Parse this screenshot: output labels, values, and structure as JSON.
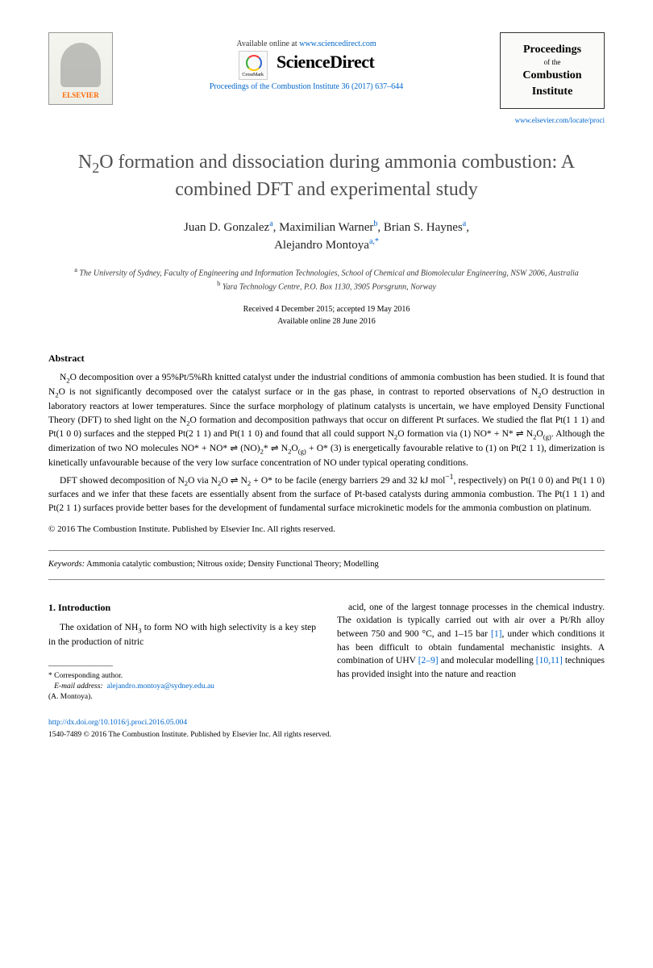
{
  "header": {
    "publisher_name": "ELSEVIER",
    "available_text": "Available online at ",
    "available_url": "www.sciencedirect.com",
    "sciencedirect": "ScienceDirect",
    "crossmark": "CrossMark",
    "citation": "Proceedings of the Combustion Institute 36 (2017) 637–644",
    "journal_box_1": "Proceedings",
    "journal_box_2": "of the",
    "journal_box_3": "Combustion",
    "journal_box_4": "Institute",
    "locate_url": "www.elsevier.com/locate/proci"
  },
  "title": "N₂O formation and dissociation during ammonia combustion: A combined DFT and experimental study",
  "authors_html": "Juan D. Gonzalez",
  "authors": {
    "a1_name": "Juan D. Gonzalez",
    "a1_aff": "a",
    "a2_name": "Maximilian Warner",
    "a2_aff": "b",
    "a3_name": "Brian S. Haynes",
    "a3_aff": "a",
    "a4_name": "Alejandro Montoya",
    "a4_aff": "a,*"
  },
  "affiliations": {
    "a": "The University of Sydney, Faculty of Engineering and Information Technologies, School of Chemical and Biomolecular Engineering, NSW 2006, Australia",
    "b": "Yara Technology Centre, P.O. Box 1130, 3905 Porsgrunn, Norway"
  },
  "dates": {
    "received_accepted": "Received 4 December 2015; accepted 19 May 2016",
    "online": "Available online 28 June 2016"
  },
  "abstract_heading": "Abstract",
  "abstract": {
    "p1": "N₂O decomposition over a 95%Pt/5%Rh knitted catalyst under the industrial conditions of ammonia combustion has been studied. It is found that N₂O is not significantly decomposed over the catalyst surface or in the gas phase, in contrast to reported observations of N₂O destruction in laboratory reactors at lower temperatures. Since the surface morphology of platinum catalysts is uncertain, we have employed Density Functional Theory (DFT) to shed light on the N₂O formation and decomposition pathways that occur on different Pt surfaces. We studied the flat Pt(1 1 1) and Pt(1 0 0) surfaces and the stepped Pt(2 1 1) and Pt(1 1 0) and found that all could support N₂O formation via (1) NO* + N* ⇌ N₂O(g). Although the dimerization of two NO molecules NO* + NO* ⇌ (NO)₂* ⇌ N₂O(g) + O* (3) is energetically favourable relative to (1) on Pt(2 1 1), dimerization is kinetically unfavourable because of the very low surface concentration of NO under typical operating conditions.",
    "p2": "DFT showed decomposition of N₂O via N₂O ⇌ N₂ + O* to be facile (energy barriers 29 and 32 kJ mol⁻¹, respectively) on Pt(1 0 0) and Pt(1 1 0) surfaces and we infer that these facets are essentially absent from the surface of Pt-based catalysts during ammonia combustion. The Pt(1 1 1) and Pt(2 1 1) surfaces provide better bases for the development of fundamental surface microkinetic models for the ammonia combustion on platinum."
  },
  "copyright": "© 2016 The Combustion Institute. Published by Elsevier Inc. All rights reserved.",
  "keywords": {
    "label": "Keywords:",
    "text": "Ammonia catalytic combustion; Nitrous oxide; Density Functional Theory; Modelling"
  },
  "intro": {
    "heading": "1. Introduction",
    "left": "The oxidation of NH₃ to form NO with high selectivity is a key step in the production of nitric",
    "right": "acid, one of the largest tonnage processes in the chemical industry. The oxidation is typically carried out with air over a Pt/Rh alloy between 750 and 900 °C, and 1–15 bar [1], under which conditions it has been difficult to obtain fundamental mechanistic insights. A combination of UHV [2–9] and molecular modelling [10,11] techniques has provided insight into the nature and reaction"
  },
  "footer": {
    "corresponding_label": "* Corresponding author.",
    "email_label": "E-mail address:",
    "email": "alejandro.montoya@sydney.edu.au",
    "email_name": "(A. Montoya).",
    "doi": "http://dx.doi.org/10.1016/j.proci.2016.05.004",
    "issn_line": "1540-7489 © 2016 The Combustion Institute. Published by Elsevier Inc. All rights reserved."
  },
  "colors": {
    "link": "#0066cc",
    "elsevier_orange": "#ff6600",
    "title_gray": "#505050",
    "text": "#000000",
    "border": "#888888"
  }
}
